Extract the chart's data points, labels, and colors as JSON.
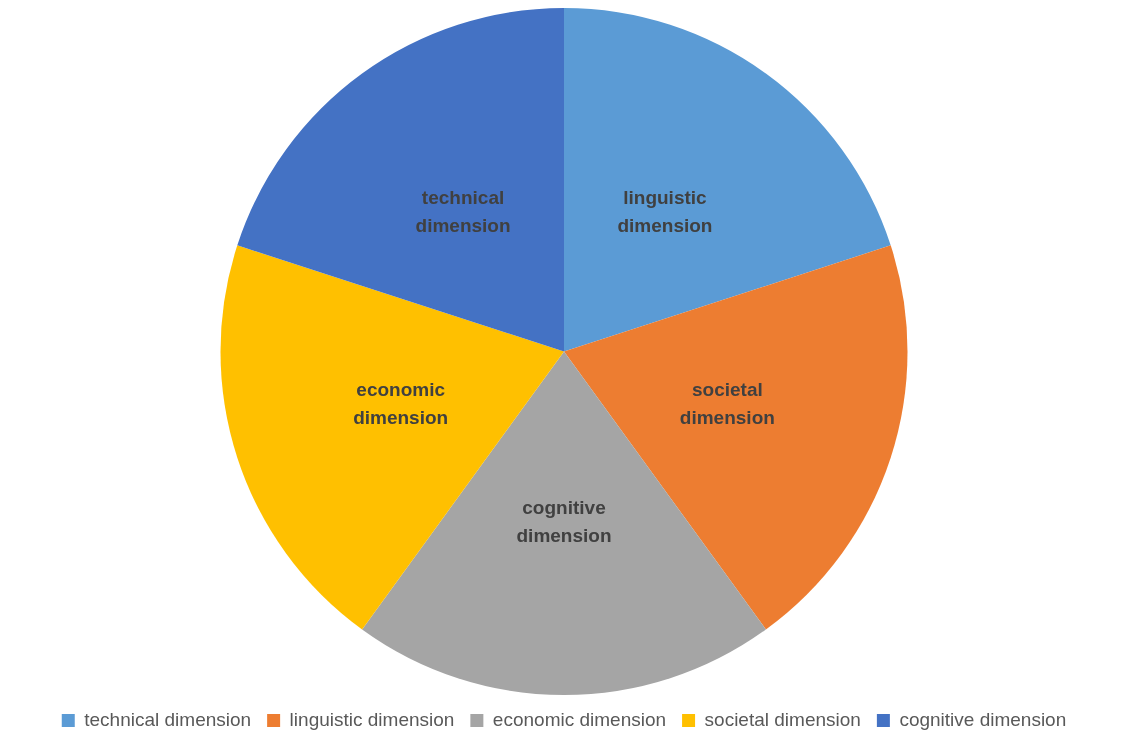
{
  "chart_data": {
    "type": "pie",
    "categories": [
      "technical dimension",
      "linguistic dimension",
      "economic dimension",
      "societal dimension",
      "cognitive dimension"
    ],
    "values": [
      20,
      20,
      20,
      20,
      20
    ],
    "colors": [
      "#5b9bd5",
      "#ed7d31",
      "#a5a5a5",
      "#ffc000",
      "#4472c4"
    ],
    "value_labels": [
      "linguistic dimension",
      "societal dimension",
      "cognitive dimension",
      "economic dimension",
      "technical dimension"
    ],
    "legend": "bottom"
  }
}
